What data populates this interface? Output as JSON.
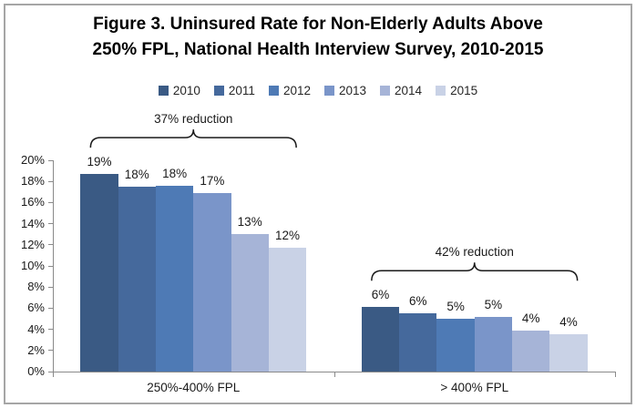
{
  "title": {
    "line1": "Figure 3. Uninsured Rate for Non-Elderly Adults Above",
    "line2": "250% FPL, National Health Interview Survey, 2010-2015"
  },
  "chart_data": {
    "type": "bar",
    "title": "Figure 3. Uninsured Rate for Non-Elderly Adults Above 250% FPL, National Health Interview Survey, 2010-2015",
    "categories": [
      "250%-400% FPL",
      "> 400% FPL"
    ],
    "series": [
      {
        "name": "2010",
        "color": "#3A5A84",
        "values": [
          18.7,
          6.1
        ],
        "labels": [
          "19%",
          "6%"
        ]
      },
      {
        "name": "2011",
        "color": "#45699C",
        "values": [
          17.5,
          5.5
        ],
        "labels": [
          "18%",
          "6%"
        ]
      },
      {
        "name": "2012",
        "color": "#4E7AB5",
        "values": [
          17.6,
          5.0
        ],
        "labels": [
          "18%",
          "5%"
        ]
      },
      {
        "name": "2013",
        "color": "#7A95C9",
        "values": [
          16.9,
          5.2
        ],
        "labels": [
          "17%",
          "5%"
        ]
      },
      {
        "name": "2014",
        "color": "#A6B4D7",
        "values": [
          13.0,
          3.9
        ],
        "labels": [
          "13%",
          "4%"
        ]
      },
      {
        "name": "2015",
        "color": "#C9D2E6",
        "values": [
          11.7,
          3.5
        ],
        "labels": [
          "12%",
          "4%"
        ]
      }
    ],
    "xlabel": "",
    "ylabel": "",
    "ylim": [
      0,
      20
    ],
    "ytick_labels": [
      "0%",
      "2%",
      "4%",
      "6%",
      "8%",
      "10%",
      "12%",
      "14%",
      "16%",
      "18%",
      "20%"
    ],
    "grid": false,
    "legend_position": "top",
    "annotations": [
      {
        "text": "37% reduction",
        "category_index": 0
      },
      {
        "text": "42% reduction",
        "category_index": 1
      }
    ],
    "axis_color": "#8A8A8A",
    "bracket_color": "#1A1A1A"
  }
}
